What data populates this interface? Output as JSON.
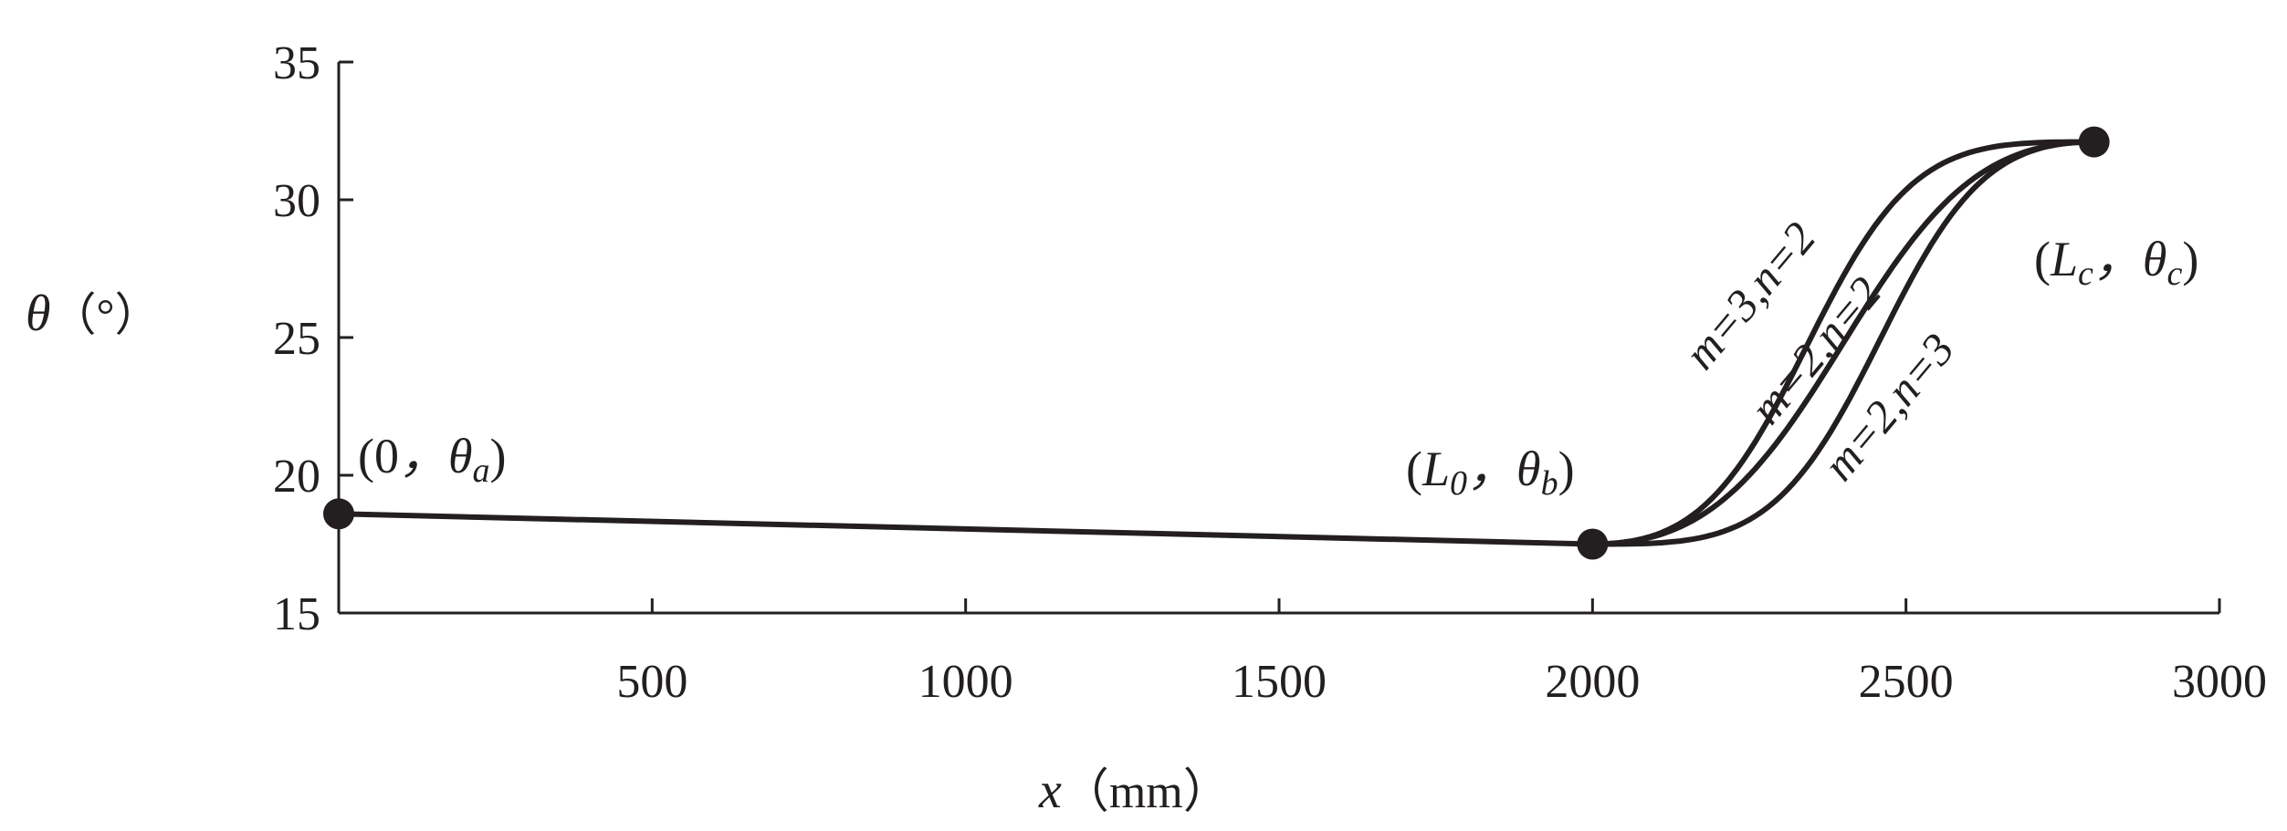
{
  "chart_data": {
    "type": "line",
    "title": "",
    "xlabel_var": "x",
    "xlabel_unit": "（mm）",
    "ylabel_var": "θ",
    "ylabel_unit": "（°）",
    "xlim": [
      0,
      3000
    ],
    "ylim": [
      15,
      35
    ],
    "xticks": [
      500,
      1000,
      1500,
      2000,
      2500,
      3000
    ],
    "yticks": [
      15,
      20,
      25,
      30,
      35
    ],
    "grid": false,
    "points": [
      {
        "x": 0,
        "y": 18.6,
        "var": "0",
        "sub": "",
        "angle_sub": "a"
      },
      {
        "x": 2000,
        "y": 17.5,
        "var": "L",
        "sub": "0",
        "angle_sub": "b"
      },
      {
        "x": 2800,
        "y": 32.1,
        "var": "L",
        "sub": "c",
        "angle_sub": "c"
      }
    ],
    "series": [
      {
        "name": "m=3,n=2",
        "m": 3,
        "n": 2
      },
      {
        "name": "m=2,n=2",
        "m": 2,
        "n": 2
      },
      {
        "name": "m=2,n=3",
        "m": 2,
        "n": 3
      }
    ],
    "curve_labels": [
      "m=3,n=2",
      "m=2,n=2",
      "m=2,n=3"
    ],
    "line_color": "#231f20"
  }
}
